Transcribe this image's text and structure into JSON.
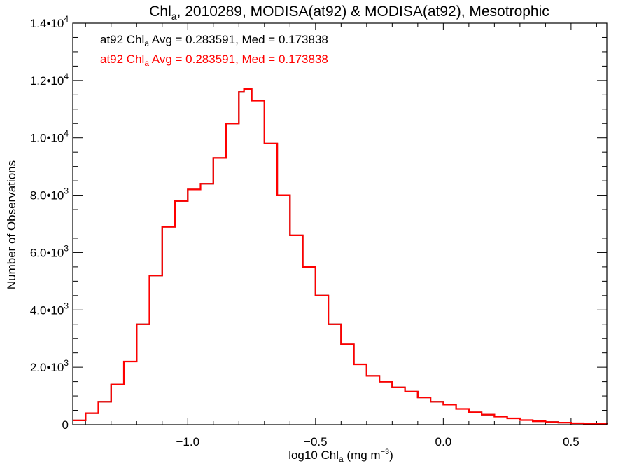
{
  "chart_data": {
    "type": "histogram",
    "title": {
      "pre": "Chl",
      "sub": "a",
      "post": ", 2010289, MODISA(at92) & MODISA(at92), Mesotrophic"
    },
    "xlabel": {
      "pre": "log10 Chl",
      "sub": "a",
      "mid": " (mg m",
      "sup": "−3",
      "post": ")"
    },
    "ylabel": "Number of Observations",
    "xlim": [
      -1.45,
      0.64
    ],
    "ylim": [
      0,
      14000
    ],
    "x_ticks": [
      {
        "value": -1.0,
        "label": "−1.0"
      },
      {
        "value": -0.5,
        "label": "−0.5"
      },
      {
        "value": 0.0,
        "label": "0.0"
      },
      {
        "value": 0.5,
        "label": "0.5"
      }
    ],
    "y_ticks": [
      {
        "value": 0,
        "label": "0",
        "exp": ""
      },
      {
        "value": 2000,
        "label": "2.0•10",
        "exp": "3"
      },
      {
        "value": 4000,
        "label": "4.0•10",
        "exp": "3"
      },
      {
        "value": 6000,
        "label": "6.0•10",
        "exp": "3"
      },
      {
        "value": 8000,
        "label": "8.0•10",
        "exp": "3"
      },
      {
        "value": 10000,
        "label": "1.0•10",
        "exp": "4"
      },
      {
        "value": 12000,
        "label": "1.2•10",
        "exp": "4"
      },
      {
        "value": 14000,
        "label": "1.4•10",
        "exp": "4"
      }
    ],
    "annotations": [
      {
        "pre": "at92 Chl",
        "sub": "a",
        "post": " Avg = 0.283591, Med = 0.173838",
        "color": "#000000"
      },
      {
        "pre": "at92 Chl",
        "sub": "a",
        "post": " Avg = 0.283591, Med = 0.173838",
        "color": "#ff0000"
      }
    ],
    "series": [
      {
        "color": "#000000",
        "x": [
          -1.45,
          -1.4,
          -1.35,
          -1.3,
          -1.25,
          -1.2,
          -1.15,
          -1.1,
          -1.05,
          -1.0,
          -0.95,
          -0.9,
          -0.85,
          -0.8,
          -0.78,
          -0.75,
          -0.7,
          -0.65,
          -0.6,
          -0.55,
          -0.5,
          -0.45,
          -0.4,
          -0.35,
          -0.3,
          -0.25,
          -0.2,
          -0.15,
          -0.1,
          -0.05,
          0.0,
          0.05,
          0.1,
          0.15,
          0.2,
          0.25,
          0.3,
          0.35,
          0.4,
          0.45,
          0.5,
          0.55,
          0.6,
          0.64
        ],
        "y": [
          150,
          400,
          800,
          1400,
          2200,
          3500,
          5200,
          6900,
          7800,
          8200,
          8400,
          9300,
          10500,
          11600,
          11700,
          11300,
          9800,
          8000,
          6600,
          5500,
          4500,
          3500,
          2800,
          2100,
          1700,
          1500,
          1300,
          1150,
          950,
          800,
          700,
          550,
          430,
          350,
          280,
          220,
          160,
          120,
          90,
          70,
          50,
          40,
          30,
          20
        ]
      },
      {
        "color": "#ff0000",
        "x": [
          -1.45,
          -1.4,
          -1.35,
          -1.3,
          -1.25,
          -1.2,
          -1.15,
          -1.1,
          -1.05,
          -1.0,
          -0.95,
          -0.9,
          -0.85,
          -0.8,
          -0.78,
          -0.75,
          -0.7,
          -0.65,
          -0.6,
          -0.55,
          -0.5,
          -0.45,
          -0.4,
          -0.35,
          -0.3,
          -0.25,
          -0.2,
          -0.15,
          -0.1,
          -0.05,
          0.0,
          0.05,
          0.1,
          0.15,
          0.2,
          0.25,
          0.3,
          0.35,
          0.4,
          0.45,
          0.5,
          0.55,
          0.6,
          0.64
        ],
        "y": [
          150,
          400,
          800,
          1400,
          2200,
          3500,
          5200,
          6900,
          7800,
          8200,
          8400,
          9300,
          10500,
          11600,
          11700,
          11300,
          9800,
          8000,
          6600,
          5500,
          4500,
          3500,
          2800,
          2100,
          1700,
          1500,
          1300,
          1150,
          950,
          800,
          700,
          550,
          430,
          350,
          280,
          220,
          160,
          120,
          90,
          70,
          50,
          40,
          30,
          20
        ]
      }
    ]
  }
}
